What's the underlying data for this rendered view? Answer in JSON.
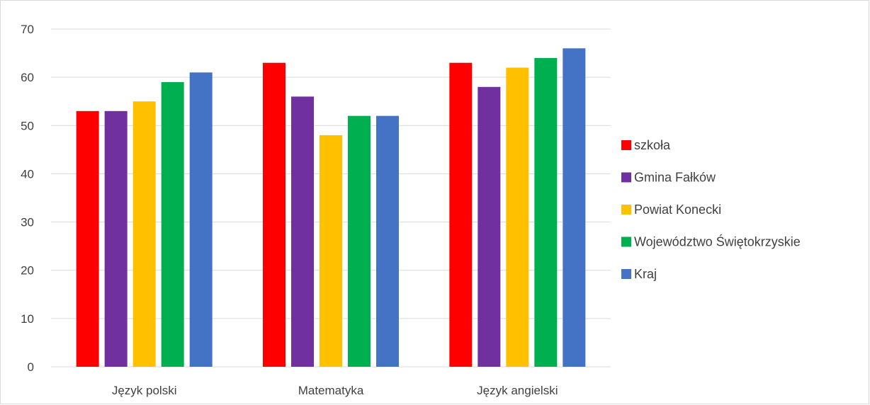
{
  "chart_data": {
    "type": "bar",
    "categories": [
      "Język polski",
      "Matematyka",
      "Język angielski"
    ],
    "series": [
      {
        "name": "szkoła",
        "color": "#ff0000",
        "values": [
          53,
          63,
          63
        ]
      },
      {
        "name": "Gmina Fałków",
        "color": "#7030a0",
        "values": [
          53,
          56,
          58
        ]
      },
      {
        "name": "Powiat Konecki",
        "color": "#ffc000",
        "values": [
          55,
          48,
          62
        ]
      },
      {
        "name": "Województwo Świętokrzyskie",
        "color": "#00b050",
        "values": [
          59,
          52,
          64
        ]
      },
      {
        "name": "Kraj",
        "color": "#4472c4",
        "values": [
          61,
          52,
          66
        ]
      }
    ],
    "ylim": [
      0,
      70
    ],
    "yticks": [
      0,
      10,
      20,
      30,
      40,
      50,
      60,
      70
    ],
    "grid": true,
    "legend": "right"
  }
}
